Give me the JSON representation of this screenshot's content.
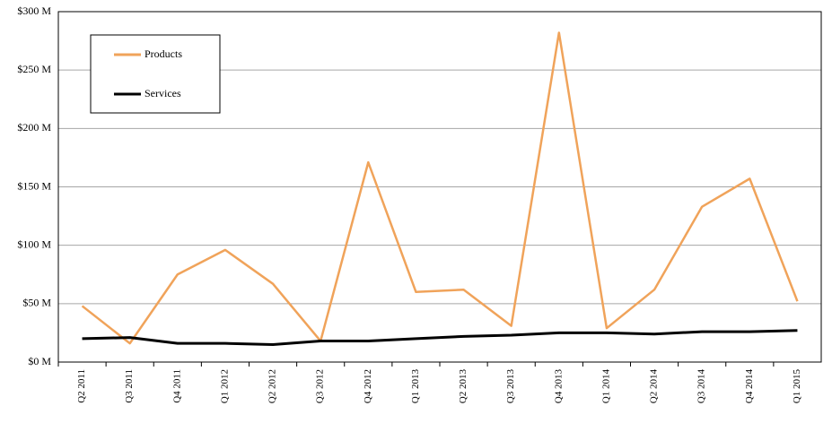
{
  "chart_data": {
    "type": "line",
    "categories": [
      "Q2 2011",
      "Q3 2011",
      "Q4 2011",
      "Q1 2012",
      "Q2 2012",
      "Q3 2012",
      "Q4 2012",
      "Q1 2013",
      "Q2 2013",
      "Q3 2013",
      "Q4 2013",
      "Q1 2014",
      "Q2 2014",
      "Q3 2014",
      "Q4 2014",
      "Q1 2015"
    ],
    "series": [
      {
        "name": "Products",
        "color": "#f0a35a",
        "values": [
          48,
          16,
          75,
          96,
          67,
          18,
          171,
          60,
          62,
          31,
          282,
          29,
          62,
          133,
          157,
          52
        ]
      },
      {
        "name": "Services",
        "color": "#000000",
        "values": [
          20,
          21,
          16,
          16,
          15,
          18,
          18,
          20,
          22,
          23,
          25,
          25,
          24,
          26,
          26,
          27
        ]
      }
    ],
    "ylim": [
      0,
      300
    ],
    "yticks": [
      {
        "value": 0,
        "label": "$0 M"
      },
      {
        "value": 50,
        "label": "$50 M"
      },
      {
        "value": 100,
        "label": "$100 M"
      },
      {
        "value": 150,
        "label": "$150 M"
      },
      {
        "value": 200,
        "label": "$200 M"
      },
      {
        "value": 250,
        "label": "$250 M"
      },
      {
        "value": 300,
        "label": "$300 M"
      }
    ],
    "grid": true,
    "legend": "upper left"
  }
}
